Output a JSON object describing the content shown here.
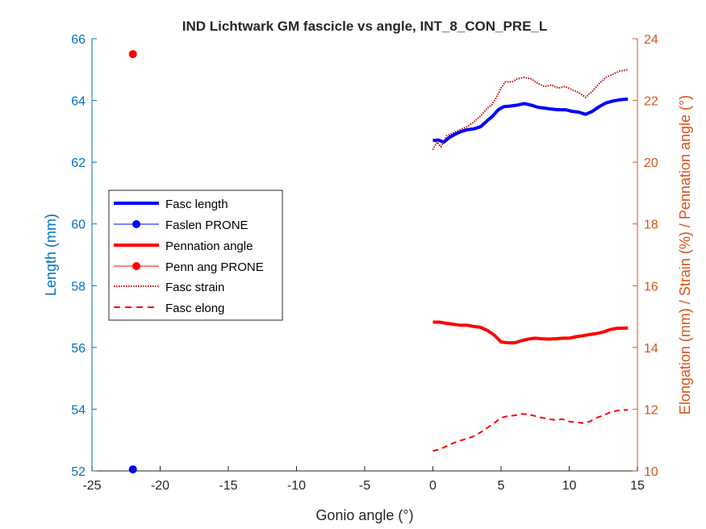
{
  "chart_data": {
    "type": "line",
    "title": "IND Lichtwark GM fascicle vs angle, INT_8_CON_PRE_L",
    "xlabel": "Gonio angle (°)",
    "ylabel_left": "Length (mm)",
    "ylabel_right": "Elongation (mm) / Strain (%) / Pennation angle (°)",
    "xlim": [
      -25,
      15
    ],
    "ylim_left": [
      52,
      66
    ],
    "ylim_right": [
      10,
      24
    ],
    "x_ticks": [
      "-25",
      "-20",
      "-15",
      "-10",
      "-5",
      "0",
      "5",
      "10",
      "15"
    ],
    "left_ticks": [
      "52",
      "54",
      "56",
      "58",
      "60",
      "62",
      "64",
      "66"
    ],
    "right_ticks": [
      "10",
      "12",
      "14",
      "16",
      "18",
      "20",
      "22",
      "24"
    ],
    "grid": false,
    "legend_position": "middle-left",
    "colors": {
      "left_axis": "#0072BD",
      "right_axis": "#D95319",
      "fasc_length": "#0000FF",
      "red": "#FF0000",
      "strain": "#C00000"
    },
    "series": [
      {
        "name": "Fasc length",
        "axis": "left",
        "style": "thick-solid",
        "color": "#0000FF",
        "points": [
          [
            0,
            62.7
          ],
          [
            0.4,
            62.72
          ],
          [
            0.8,
            62.65
          ],
          [
            1.2,
            62.8
          ],
          [
            1.6,
            62.9
          ],
          [
            2.0,
            62.98
          ],
          [
            2.5,
            63.05
          ],
          [
            3.0,
            63.08
          ],
          [
            3.5,
            63.15
          ],
          [
            4.0,
            63.35
          ],
          [
            4.4,
            63.5
          ],
          [
            4.8,
            63.7
          ],
          [
            5.2,
            63.8
          ],
          [
            5.7,
            63.82
          ],
          [
            6.2,
            63.85
          ],
          [
            6.7,
            63.9
          ],
          [
            7.2,
            63.85
          ],
          [
            7.7,
            63.78
          ],
          [
            8.2,
            63.75
          ],
          [
            8.7,
            63.72
          ],
          [
            9.2,
            63.7
          ],
          [
            9.7,
            63.7
          ],
          [
            10.2,
            63.65
          ],
          [
            10.7,
            63.62
          ],
          [
            11.2,
            63.55
          ],
          [
            11.7,
            63.65
          ],
          [
            12.2,
            63.8
          ],
          [
            12.7,
            63.92
          ],
          [
            13.2,
            63.98
          ],
          [
            13.7,
            64.02
          ],
          [
            14.3,
            64.05
          ]
        ]
      },
      {
        "name": "Faslen PRONE",
        "axis": "left",
        "style": "marker",
        "color": "#0000FF",
        "points": [
          [
            -22,
            52.05
          ]
        ]
      },
      {
        "name": "Pennation angle",
        "axis": "right",
        "style": "thick-solid",
        "color": "#FF0000",
        "points": [
          [
            0,
            14.82
          ],
          [
            0.5,
            14.82
          ],
          [
            1.0,
            14.78
          ],
          [
            1.5,
            14.75
          ],
          [
            2.0,
            14.72
          ],
          [
            2.5,
            14.72
          ],
          [
            3.0,
            14.68
          ],
          [
            3.5,
            14.65
          ],
          [
            4.0,
            14.55
          ],
          [
            4.5,
            14.4
          ],
          [
            5.0,
            14.18
          ],
          [
            5.5,
            14.15
          ],
          [
            6.0,
            14.15
          ],
          [
            6.5,
            14.22
          ],
          [
            7.0,
            14.27
          ],
          [
            7.5,
            14.3
          ],
          [
            8.0,
            14.28
          ],
          [
            8.5,
            14.27
          ],
          [
            9.0,
            14.28
          ],
          [
            9.5,
            14.3
          ],
          [
            10.0,
            14.3
          ],
          [
            10.5,
            14.35
          ],
          [
            11.0,
            14.38
          ],
          [
            11.5,
            14.42
          ],
          [
            12.0,
            14.45
          ],
          [
            12.5,
            14.5
          ],
          [
            13.0,
            14.58
          ],
          [
            13.5,
            14.62
          ],
          [
            14.3,
            14.63
          ]
        ]
      },
      {
        "name": "Penn ang PRONE",
        "axis": "right",
        "style": "marker",
        "color": "#FF0000",
        "points": [
          [
            -22,
            23.5
          ]
        ]
      },
      {
        "name": "Fasc strain",
        "axis": "right",
        "style": "dotted",
        "color": "#C00000",
        "points": [
          [
            0,
            20.4
          ],
          [
            0.3,
            20.65
          ],
          [
            0.6,
            20.5
          ],
          [
            1.0,
            20.85
          ],
          [
            1.5,
            20.95
          ],
          [
            2.0,
            21.05
          ],
          [
            2.5,
            21.15
          ],
          [
            3.0,
            21.3
          ],
          [
            3.5,
            21.5
          ],
          [
            4.0,
            21.75
          ],
          [
            4.3,
            21.85
          ],
          [
            4.6,
            22.05
          ],
          [
            5.0,
            22.4
          ],
          [
            5.3,
            22.6
          ],
          [
            5.8,
            22.6
          ],
          [
            6.2,
            22.7
          ],
          [
            6.7,
            22.75
          ],
          [
            7.2,
            22.7
          ],
          [
            7.7,
            22.55
          ],
          [
            8.2,
            22.45
          ],
          [
            8.7,
            22.5
          ],
          [
            9.2,
            22.4
          ],
          [
            9.7,
            22.45
          ],
          [
            10.2,
            22.35
          ],
          [
            10.7,
            22.25
          ],
          [
            11.2,
            22.1
          ],
          [
            11.7,
            22.3
          ],
          [
            12.2,
            22.55
          ],
          [
            12.7,
            22.75
          ],
          [
            13.2,
            22.85
          ],
          [
            13.7,
            22.95
          ],
          [
            14.3,
            23.0
          ]
        ]
      },
      {
        "name": "Fasc elong",
        "axis": "right",
        "style": "dashed",
        "color": "#FF0000",
        "points": [
          [
            0,
            10.65
          ],
          [
            0.5,
            10.7
          ],
          [
            1.0,
            10.8
          ],
          [
            1.5,
            10.9
          ],
          [
            2.0,
            10.98
          ],
          [
            2.5,
            11.05
          ],
          [
            3.0,
            11.12
          ],
          [
            3.5,
            11.25
          ],
          [
            4.0,
            11.4
          ],
          [
            4.5,
            11.55
          ],
          [
            5.0,
            11.72
          ],
          [
            5.5,
            11.78
          ],
          [
            6.0,
            11.8
          ],
          [
            6.5,
            11.85
          ],
          [
            7.0,
            11.83
          ],
          [
            7.5,
            11.78
          ],
          [
            8.0,
            11.72
          ],
          [
            8.5,
            11.68
          ],
          [
            9.0,
            11.65
          ],
          [
            9.5,
            11.68
          ],
          [
            10.0,
            11.6
          ],
          [
            10.5,
            11.58
          ],
          [
            11.0,
            11.55
          ],
          [
            11.5,
            11.6
          ],
          [
            12.0,
            11.72
          ],
          [
            12.5,
            11.8
          ],
          [
            13.0,
            11.9
          ],
          [
            13.5,
            11.95
          ],
          [
            14.3,
            11.98
          ]
        ]
      }
    ]
  }
}
